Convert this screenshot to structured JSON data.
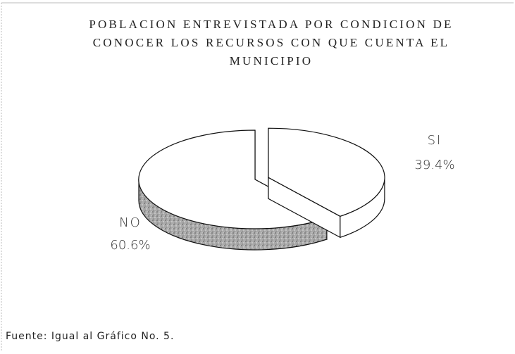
{
  "chart_data": {
    "type": "pie",
    "title": "POBLACION ENTREVISTADA POR CONDICION DE CONOCER LOS RECURSOS CON QUE CUENTA EL MUNICIPIO",
    "categories": [
      "SI",
      "NO"
    ],
    "values": [
      39.4,
      60.6
    ],
    "value_labels": [
      "39.4%",
      "60.6%"
    ],
    "source": "Fuente: Igual al Gráfico No. 5."
  }
}
